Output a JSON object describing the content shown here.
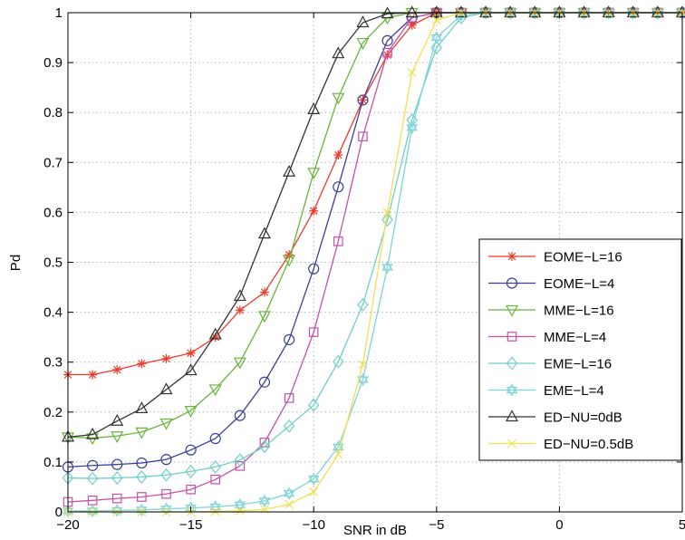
{
  "chart_data": {
    "type": "line",
    "title": "",
    "xlabel": "SNR in dB",
    "ylabel": "Pd",
    "xlim": [
      -20,
      5
    ],
    "ylim": [
      0,
      1
    ],
    "grid": true,
    "legend_position": "bottom-right",
    "x_ticks": [
      -20,
      -15,
      -10,
      -5,
      0,
      5
    ],
    "x_tick_labels": [
      "−20",
      "−15",
      "−10",
      "−5",
      "0",
      "5"
    ],
    "y_ticks": [
      0,
      0.1,
      0.2,
      0.3,
      0.4,
      0.5,
      0.6,
      0.7,
      0.8,
      0.9,
      1
    ],
    "y_tick_labels": [
      "0",
      "0.1",
      "0.2",
      "0.3",
      "0.4",
      "0.5",
      "0.6",
      "0.7",
      "0.8",
      "0.9",
      "1"
    ],
    "x": [
      -20,
      -19,
      -18,
      -17,
      -16,
      -15,
      -14,
      -13,
      -12,
      -11,
      -10,
      -9,
      -8,
      -7,
      -6,
      -5,
      -4,
      -3,
      -2,
      -1,
      0,
      1,
      2,
      3,
      4,
      5
    ],
    "series": [
      {
        "name": "EOME−L=16",
        "color": "#ee3b2c",
        "marker": "star",
        "values": [
          0.275,
          0.275,
          0.285,
          0.297,
          0.307,
          0.318,
          0.35,
          0.404,
          0.44,
          0.515,
          0.603,
          0.715,
          0.825,
          0.915,
          0.975,
          1,
          1,
          1,
          1,
          1,
          1,
          1,
          1,
          1,
          1,
          1
        ]
      },
      {
        "name": "EOME−L=4",
        "color": "#3a3f9a",
        "marker": "circle",
        "values": [
          0.09,
          0.093,
          0.095,
          0.098,
          0.105,
          0.124,
          0.147,
          0.193,
          0.26,
          0.345,
          0.487,
          0.651,
          0.825,
          0.944,
          0.99,
          1,
          1,
          1,
          1,
          1,
          1,
          1,
          1,
          1,
          1,
          1
        ]
      },
      {
        "name": "MME−L=16",
        "color": "#68b53a",
        "marker": "triangle-down",
        "values": [
          0.15,
          0.148,
          0.152,
          0.16,
          0.178,
          0.203,
          0.246,
          0.3,
          0.393,
          0.505,
          0.68,
          0.83,
          0.94,
          0.99,
          1,
          1,
          1,
          1,
          1,
          1,
          1,
          1,
          1,
          1,
          1,
          1
        ]
      },
      {
        "name": "MME−L=4",
        "color": "#c551a8",
        "marker": "square",
        "values": [
          0.02,
          0.023,
          0.027,
          0.03,
          0.036,
          0.045,
          0.065,
          0.092,
          0.139,
          0.228,
          0.36,
          0.542,
          0.752,
          0.92,
          0.99,
          1,
          1,
          1,
          1,
          1,
          1,
          1,
          1,
          1,
          1,
          1
        ]
      },
      {
        "name": "EME−L=16",
        "color": "#6fcfca",
        "marker": "diamond",
        "values": [
          0.068,
          0.067,
          0.068,
          0.07,
          0.074,
          0.081,
          0.09,
          0.104,
          0.131,
          0.172,
          0.214,
          0.301,
          0.415,
          0.585,
          0.785,
          0.93,
          0.99,
          1,
          1,
          1,
          1,
          1,
          1,
          1,
          1,
          1
        ]
      },
      {
        "name": "EME−L=4",
        "color": "#7fd3d8",
        "marker": "hexagram",
        "values": [
          0.002,
          0.002,
          0.003,
          0.004,
          0.006,
          0.008,
          0.01,
          0.014,
          0.022,
          0.037,
          0.066,
          0.13,
          0.265,
          0.49,
          0.77,
          0.95,
          0.995,
          1,
          1,
          1,
          1,
          1,
          1,
          1,
          1,
          1
        ]
      },
      {
        "name": "ED−NU=0dB",
        "color": "#333333",
        "marker": "triangle-up",
        "values": [
          0.15,
          0.155,
          0.182,
          0.207,
          0.245,
          0.283,
          0.355,
          0.432,
          0.557,
          0.681,
          0.806,
          0.918,
          0.98,
          0.998,
          1,
          1,
          1,
          1,
          1,
          1,
          1,
          1,
          1,
          1,
          1,
          1
        ]
      },
      {
        "name": "ED−NU=0.5dB",
        "color": "#f2e050",
        "marker": "x",
        "values": [
          0,
          0,
          0,
          0,
          0,
          0,
          0.001,
          0.002,
          0.005,
          0.015,
          0.04,
          0.115,
          0.295,
          0.6,
          0.88,
          0.985,
          1,
          1,
          1,
          1,
          1,
          1,
          1,
          1,
          1,
          1
        ]
      }
    ]
  }
}
